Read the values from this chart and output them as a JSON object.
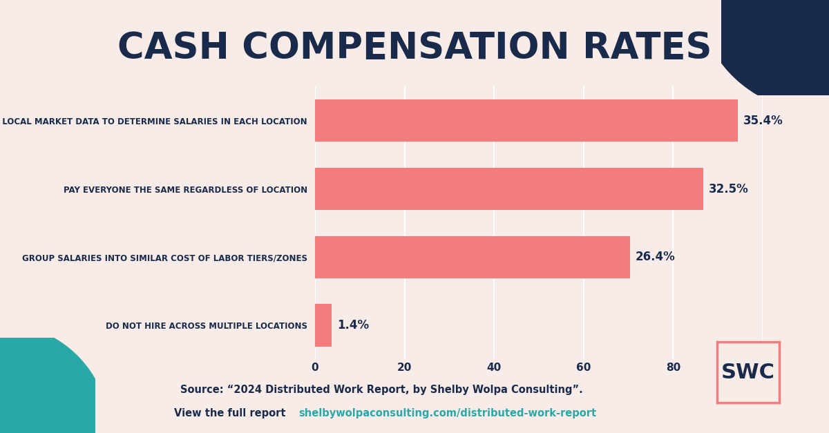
{
  "title": "CASH COMPENSATION RATES",
  "background_color": "#f8ece8",
  "bar_color": "#f47c7c",
  "categories": [
    "DO NOT HIRE ACROSS MULTIPLE LOCATIONS",
    "GROUP SALARIES INTO SIMILAR COST OF LABOR TIERS/ZONES",
    "PAY EVERYONE THE SAME REGARDLESS OF LOCATION",
    "USE LOCAL MARKET DATA TO DETERMINE SALARIES IN EACH LOCATION"
  ],
  "values": [
    3.73,
    70.4,
    86.67,
    94.4
  ],
  "labels": [
    "1.4%",
    "26.4%",
    "32.5%",
    "35.4%"
  ],
  "xlim": [
    0,
    100
  ],
  "xticks": [
    0,
    20,
    40,
    60,
    80,
    100
  ],
  "source_text": "Source: “2024 Distributed Work Report, by Shelby Wolpa Consulting”.",
  "source_line2_prefix": "View the full report ",
  "source_link": "shelbywolpaconsulting.com/distributed-work-report",
  "source_link_color": "#2aa8a8",
  "source_text_color": "#1a2a4a",
  "title_color": "#1a2a4a",
  "label_color": "#1a2a4a",
  "category_text_color": "#1a2a4a",
  "tick_color": "#1a2a4a",
  "swc_box_color": "#f47c7c",
  "swc_text_color": "#1a2a4a",
  "corner_teal_color": "#2aa8a8",
  "corner_navy_color": "#1a2a4a",
  "grid_color": "#ffffff",
  "bar_height": 0.62
}
